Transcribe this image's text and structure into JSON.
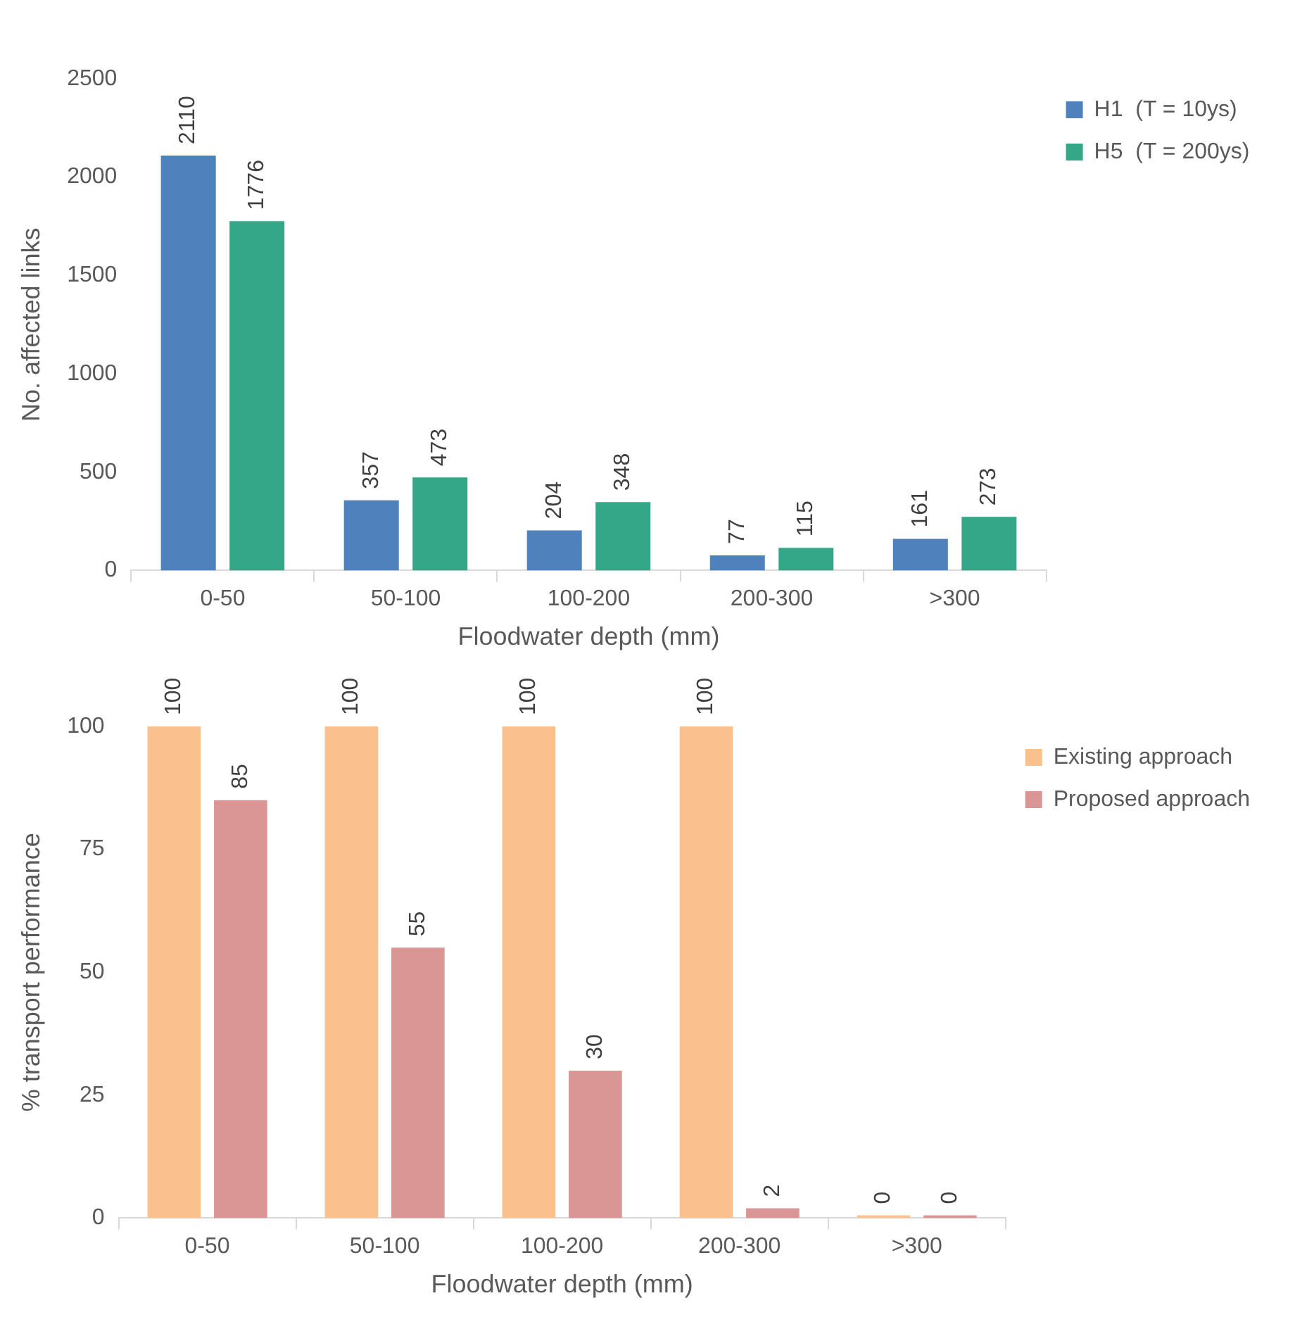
{
  "chart_data": [
    {
      "type": "bar",
      "xlabel": "Floodwater depth (mm)",
      "ylabel": "No. affected links",
      "categories": [
        "0-50",
        "50-100",
        "100-200",
        "200-300",
        ">300"
      ],
      "series": [
        {
          "name": "H1  (T = 10ys)",
          "color": "#4f81bd",
          "values": [
            2110,
            357,
            204,
            77,
            161
          ]
        },
        {
          "name": "H5  (T = 200ys)",
          "color": "#33a787",
          "values": [
            1776,
            473,
            348,
            115,
            273
          ]
        }
      ],
      "ylim": [
        0,
        2500
      ],
      "yticks": [
        0,
        500,
        1000,
        1500,
        2000,
        2500
      ],
      "grid": false,
      "legend": "top right",
      "data_labels": true
    },
    {
      "type": "bar",
      "xlabel": "Floodwater depth (mm)",
      "ylabel": "% transport performance",
      "categories": [
        "0-50",
        "50-100",
        "100-200",
        "200-300",
        ">300"
      ],
      "series": [
        {
          "name": "Existing approach",
          "color": "#fac18f",
          "values": [
            100,
            100,
            100,
            100,
            0
          ]
        },
        {
          "name": "Proposed approach",
          "color": "#d99695",
          "values": [
            85,
            55,
            30,
            2,
            0
          ]
        }
      ],
      "ylim": [
        0,
        100
      ],
      "yticks": [
        0,
        25,
        50,
        75,
        100
      ],
      "grid": false,
      "legend": "top right",
      "data_labels": true
    }
  ]
}
